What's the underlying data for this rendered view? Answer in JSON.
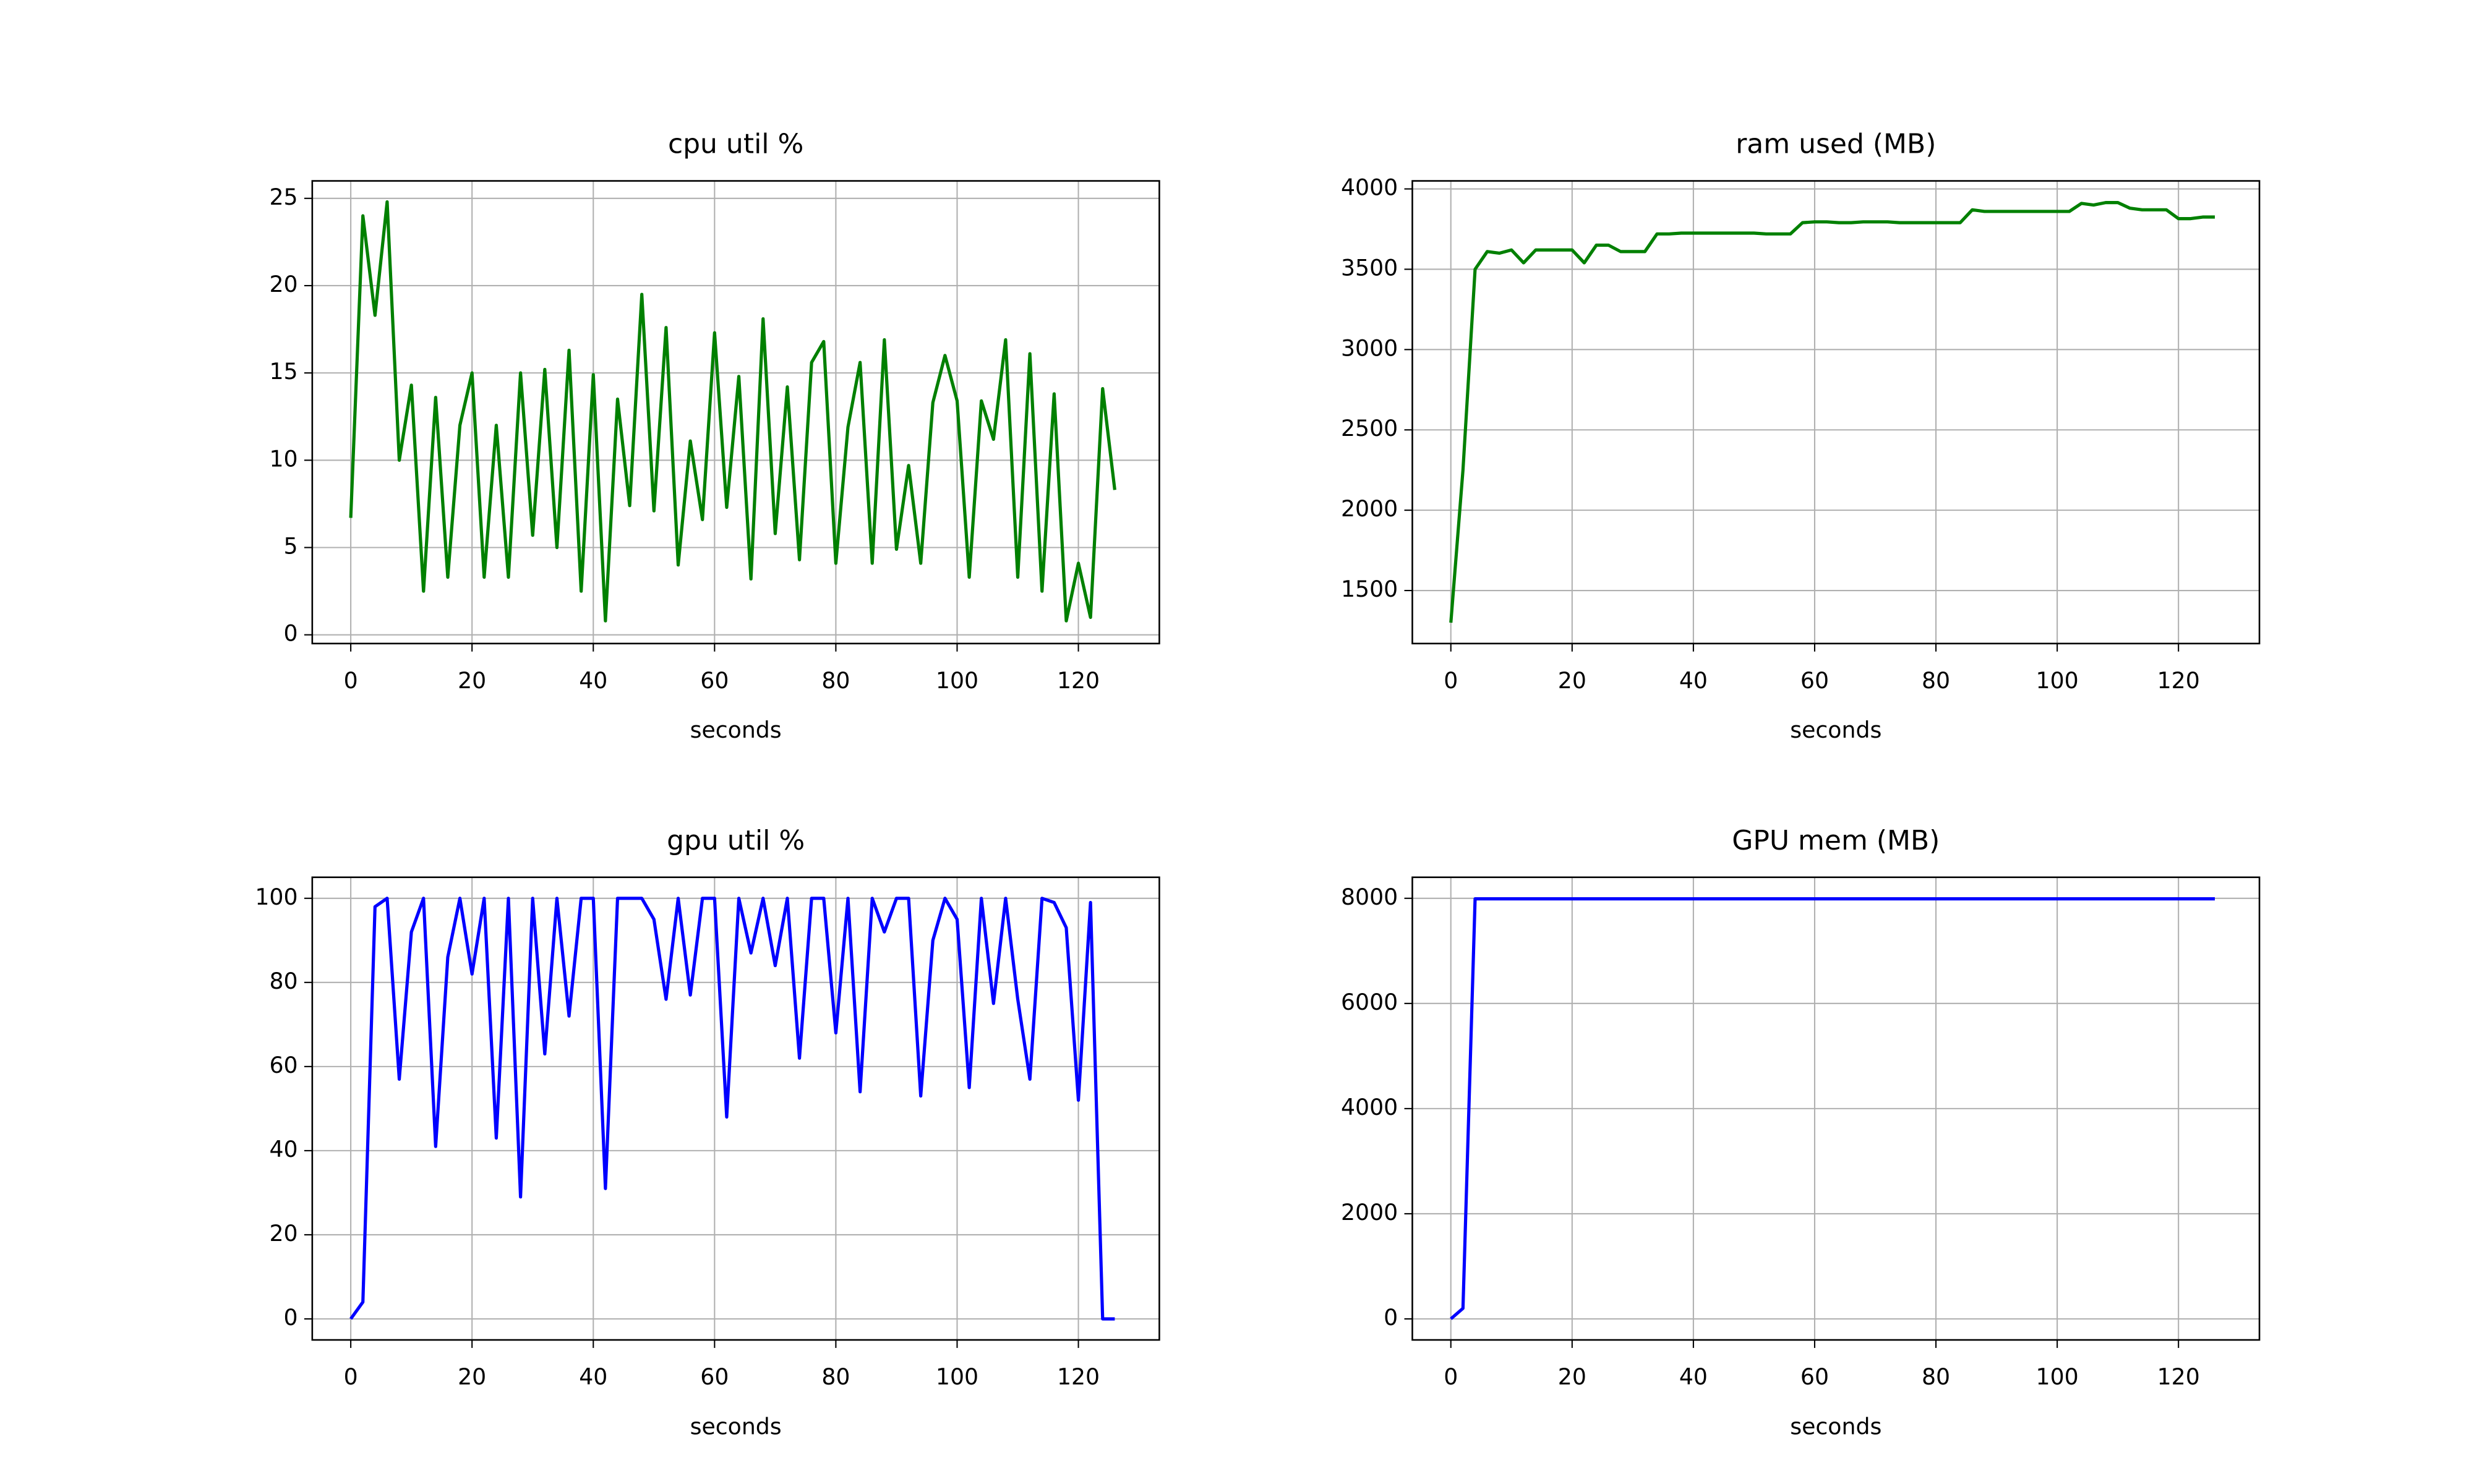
{
  "chart_data": [
    {
      "type": "line",
      "title": "cpu util %",
      "xlabel": "seconds",
      "color": "#008000",
      "grid": true,
      "x": [
        0,
        2,
        4,
        6,
        8,
        10,
        12,
        14,
        16,
        18,
        20,
        22,
        24,
        26,
        28,
        30,
        32,
        34,
        36,
        38,
        40,
        42,
        44,
        46,
        48,
        50,
        52,
        54,
        56,
        58,
        60,
        62,
        64,
        66,
        68,
        70,
        72,
        74,
        76,
        78,
        80,
        82,
        84,
        86,
        88,
        90,
        92,
        94,
        96,
        98,
        100,
        102,
        104,
        106,
        108,
        110,
        112,
        114,
        116,
        118,
        120,
        122,
        124,
        126
      ],
      "values": [
        6.7,
        24,
        18.3,
        24.8,
        10,
        14.3,
        2.5,
        13.6,
        3.3,
        12,
        15,
        3.3,
        12,
        3.3,
        15,
        5.7,
        15.2,
        5,
        16.3,
        2.5,
        14.9,
        0.8,
        13.5,
        7.4,
        19.5,
        7.1,
        17.6,
        4,
        11.1,
        6.6,
        17.3,
        7.3,
        14.8,
        3.2,
        18.1,
        5.8,
        14.2,
        4.3,
        15.6,
        16.8,
        4.1,
        11.9,
        15.6,
        4.1,
        16.9,
        4.9,
        9.7,
        4.1,
        13.3,
        16,
        13.4,
        3.3,
        13.4,
        11.2,
        16.9,
        3.3,
        16.1,
        2.5,
        13.8,
        0.8,
        4.1,
        1.0,
        14.1,
        8.3
      ],
      "xlim": [
        -6.35,
        133.35
      ],
      "xticks": [
        0,
        20,
        40,
        60,
        80,
        100,
        120
      ],
      "ylim": [
        -0.5,
        26.0
      ],
      "yticks": [
        0,
        5,
        10,
        15,
        20,
        25
      ]
    },
    {
      "type": "line",
      "title": "ram used (MB)",
      "xlabel": "seconds",
      "color": "#008000",
      "grid": true,
      "x": [
        0,
        2,
        4,
        6,
        8,
        10,
        12,
        14,
        16,
        18,
        20,
        22,
        24,
        26,
        28,
        30,
        32,
        34,
        36,
        38,
        40,
        42,
        44,
        46,
        48,
        50,
        52,
        54,
        56,
        58,
        60,
        62,
        64,
        66,
        68,
        70,
        72,
        74,
        76,
        78,
        80,
        82,
        84,
        86,
        88,
        90,
        92,
        94,
        96,
        98,
        100,
        102,
        104,
        106,
        108,
        110,
        112,
        114,
        116,
        118,
        120,
        122,
        124,
        126
      ],
      "values": [
        1300,
        2250,
        3500,
        3610,
        3600,
        3620,
        3540,
        3620,
        3620,
        3620,
        3620,
        3540,
        3650,
        3650,
        3610,
        3610,
        3610,
        3720,
        3720,
        3725,
        3725,
        3725,
        3725,
        3725,
        3725,
        3725,
        3720,
        3720,
        3720,
        3790,
        3795,
        3795,
        3790,
        3790,
        3795,
        3795,
        3795,
        3790,
        3790,
        3790,
        3790,
        3790,
        3790,
        3870,
        3860,
        3860,
        3860,
        3860,
        3860,
        3860,
        3860,
        3860,
        3910,
        3900,
        3915,
        3915,
        3880,
        3870,
        3870,
        3870,
        3815,
        3815,
        3825,
        3825
      ],
      "xlim": [
        -6.35,
        133.35
      ],
      "xticks": [
        0,
        20,
        40,
        60,
        80,
        100,
        120
      ],
      "ylim": [
        1170,
        4050
      ],
      "yticks": [
        1500,
        2000,
        2500,
        3000,
        3500,
        4000
      ]
    },
    {
      "type": "line",
      "title": "gpu util %",
      "xlabel": "seconds",
      "color": "#0000ff",
      "grid": true,
      "x": [
        0,
        2,
        4,
        6,
        8,
        10,
        12,
        14,
        16,
        18,
        20,
        22,
        24,
        26,
        28,
        30,
        32,
        34,
        36,
        38,
        40,
        42,
        44,
        46,
        48,
        50,
        52,
        54,
        56,
        58,
        60,
        62,
        64,
        66,
        68,
        70,
        72,
        74,
        76,
        78,
        80,
        82,
        84,
        86,
        88,
        90,
        92,
        94,
        96,
        98,
        100,
        102,
        104,
        106,
        108,
        110,
        112,
        114,
        116,
        118,
        120,
        122,
        124,
        126
      ],
      "values": [
        0,
        4,
        98,
        100,
        57,
        92,
        100,
        41,
        86,
        100,
        82,
        100,
        43,
        100,
        29,
        100,
        63,
        100,
        72,
        100,
        100,
        31,
        100,
        100,
        100,
        95,
        76,
        100,
        77,
        100,
        100,
        48,
        100,
        87,
        100,
        84,
        100,
        62,
        100,
        100,
        68,
        100,
        54,
        100,
        92,
        100,
        100,
        53,
        90,
        100,
        95,
        55,
        100,
        75,
        100,
        76,
        57,
        100,
        99,
        93,
        52,
        99,
        0,
        0
      ],
      "xlim": [
        -6.35,
        133.35
      ],
      "xticks": [
        0,
        20,
        40,
        60,
        80,
        100,
        120
      ],
      "ylim": [
        -5,
        105
      ],
      "yticks": [
        0,
        20,
        40,
        60,
        80,
        100
      ]
    },
    {
      "type": "line",
      "title": "GPU mem (MB)",
      "xlabel": "seconds",
      "color": "#0000ff",
      "grid": true,
      "x": [
        0,
        2,
        4,
        6,
        8,
        10,
        12,
        14,
        16,
        18,
        20,
        22,
        24,
        26,
        28,
        30,
        32,
        34,
        36,
        38,
        40,
        42,
        44,
        46,
        48,
        50,
        52,
        54,
        56,
        58,
        60,
        62,
        64,
        66,
        68,
        70,
        72,
        74,
        76,
        78,
        80,
        82,
        84,
        86,
        88,
        90,
        92,
        94,
        96,
        98,
        100,
        102,
        104,
        106,
        108,
        110,
        112,
        114,
        116,
        118,
        120,
        122,
        124,
        126
      ],
      "values": [
        0,
        200,
        7990,
        7990,
        7990,
        7990,
        7990,
        7990,
        7990,
        7990,
        7990,
        7990,
        7990,
        7990,
        7990,
        7990,
        7990,
        7990,
        7990,
        7990,
        7990,
        7990,
        7990,
        7990,
        7990,
        7990,
        7990,
        7990,
        7990,
        7990,
        7990,
        7990,
        7990,
        7990,
        7990,
        7990,
        7990,
        7990,
        7990,
        7990,
        7990,
        7990,
        7990,
        7990,
        7990,
        7990,
        7990,
        7990,
        7990,
        7990,
        7990,
        7990,
        7990,
        7990,
        7990,
        7990,
        7990,
        7990,
        7990,
        7990,
        7990,
        7990,
        7990,
        7990
      ],
      "xlim": [
        -6.35,
        133.35
      ],
      "xticks": [
        0,
        20,
        40,
        60,
        80,
        100,
        120
      ],
      "ylim": [
        -400,
        8400
      ],
      "yticks": [
        0,
        2000,
        4000,
        6000,
        8000
      ]
    }
  ]
}
